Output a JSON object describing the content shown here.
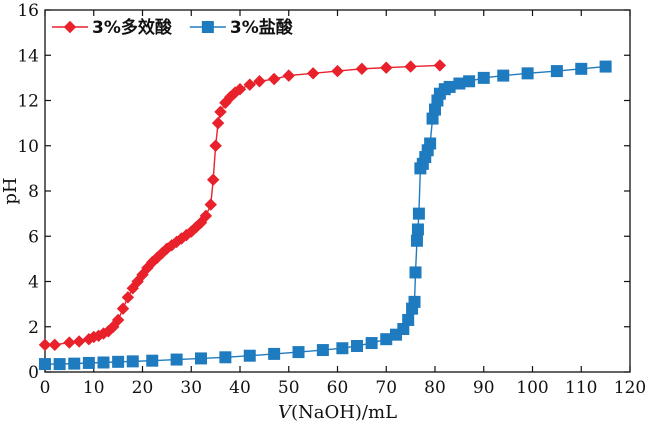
{
  "chart_data": {
    "type": "line",
    "xlabel_italic": "V",
    "xlabel_rest": "(NaOH)/mL",
    "ylabel": "pH",
    "xlim": [
      0,
      120
    ],
    "ylim": [
      0,
      16
    ],
    "x_ticks": [
      0,
      10,
      20,
      30,
      40,
      50,
      60,
      70,
      80,
      90,
      100,
      110,
      120
    ],
    "y_ticks": [
      0,
      2,
      4,
      6,
      8,
      10,
      12,
      14,
      16
    ],
    "grid": false,
    "legend_position": "top-left",
    "series": [
      {
        "name": "3%多效酸",
        "color": "#e8212b",
        "marker": "diamond",
        "points": [
          [
            0,
            1.2
          ],
          [
            2,
            1.2
          ],
          [
            5,
            1.3
          ],
          [
            7,
            1.35
          ],
          [
            9,
            1.45
          ],
          [
            10,
            1.55
          ],
          [
            11,
            1.6
          ],
          [
            12,
            1.7
          ],
          [
            13,
            1.8
          ],
          [
            14,
            2.0
          ],
          [
            15,
            2.3
          ],
          [
            16,
            2.8
          ],
          [
            17,
            3.3
          ],
          [
            18,
            3.7
          ],
          [
            19,
            4.0
          ],
          [
            20,
            4.3
          ],
          [
            21,
            4.6
          ],
          [
            22,
            4.85
          ],
          [
            23,
            5.05
          ],
          [
            24,
            5.25
          ],
          [
            25,
            5.45
          ],
          [
            26,
            5.6
          ],
          [
            27,
            5.75
          ],
          [
            28,
            5.9
          ],
          [
            29,
            6.05
          ],
          [
            30,
            6.2
          ],
          [
            31,
            6.4
          ],
          [
            32,
            6.6
          ],
          [
            33,
            6.9
          ],
          [
            34,
            7.4
          ],
          [
            34.5,
            8.5
          ],
          [
            35,
            10.0
          ],
          [
            35.5,
            11.0
          ],
          [
            36,
            11.5
          ],
          [
            37,
            11.9
          ],
          [
            38,
            12.15
          ],
          [
            39,
            12.35
          ],
          [
            40,
            12.5
          ],
          [
            42,
            12.7
          ],
          [
            44,
            12.85
          ],
          [
            47,
            12.95
          ],
          [
            50,
            13.1
          ],
          [
            55,
            13.2
          ],
          [
            60,
            13.3
          ],
          [
            65,
            13.4
          ],
          [
            70,
            13.45
          ],
          [
            75,
            13.5
          ],
          [
            81,
            13.55
          ]
        ]
      },
      {
        "name": "3%盐酸",
        "color": "#1f7bbf",
        "marker": "square",
        "points": [
          [
            0,
            0.35
          ],
          [
            3,
            0.35
          ],
          [
            6,
            0.37
          ],
          [
            9,
            0.4
          ],
          [
            12,
            0.42
          ],
          [
            15,
            0.45
          ],
          [
            18,
            0.47
          ],
          [
            22,
            0.5
          ],
          [
            27,
            0.55
          ],
          [
            32,
            0.6
          ],
          [
            37,
            0.65
          ],
          [
            42,
            0.72
          ],
          [
            47,
            0.8
          ],
          [
            52,
            0.88
          ],
          [
            57,
            0.97
          ],
          [
            61,
            1.05
          ],
          [
            64,
            1.15
          ],
          [
            67,
            1.28
          ],
          [
            70,
            1.45
          ],
          [
            72,
            1.65
          ],
          [
            73.5,
            1.9
          ],
          [
            74.5,
            2.3
          ],
          [
            75.3,
            2.8
          ],
          [
            75.8,
            3.1
          ],
          [
            76,
            4.4
          ],
          [
            76.3,
            5.8
          ],
          [
            76.5,
            6.3
          ],
          [
            76.7,
            7.0
          ],
          [
            77,
            9.0
          ],
          [
            77.5,
            9.2
          ],
          [
            78,
            9.5
          ],
          [
            78.5,
            9.8
          ],
          [
            79,
            10.1
          ],
          [
            79.5,
            11.2
          ],
          [
            80,
            11.6
          ],
          [
            80.5,
            12.0
          ],
          [
            81,
            12.3
          ],
          [
            82,
            12.5
          ],
          [
            83,
            12.6
          ],
          [
            85,
            12.75
          ],
          [
            87,
            12.85
          ],
          [
            90,
            13.0
          ],
          [
            94,
            13.1
          ],
          [
            99,
            13.2
          ],
          [
            105,
            13.3
          ],
          [
            110,
            13.4
          ],
          [
            115,
            13.5
          ]
        ]
      }
    ]
  }
}
